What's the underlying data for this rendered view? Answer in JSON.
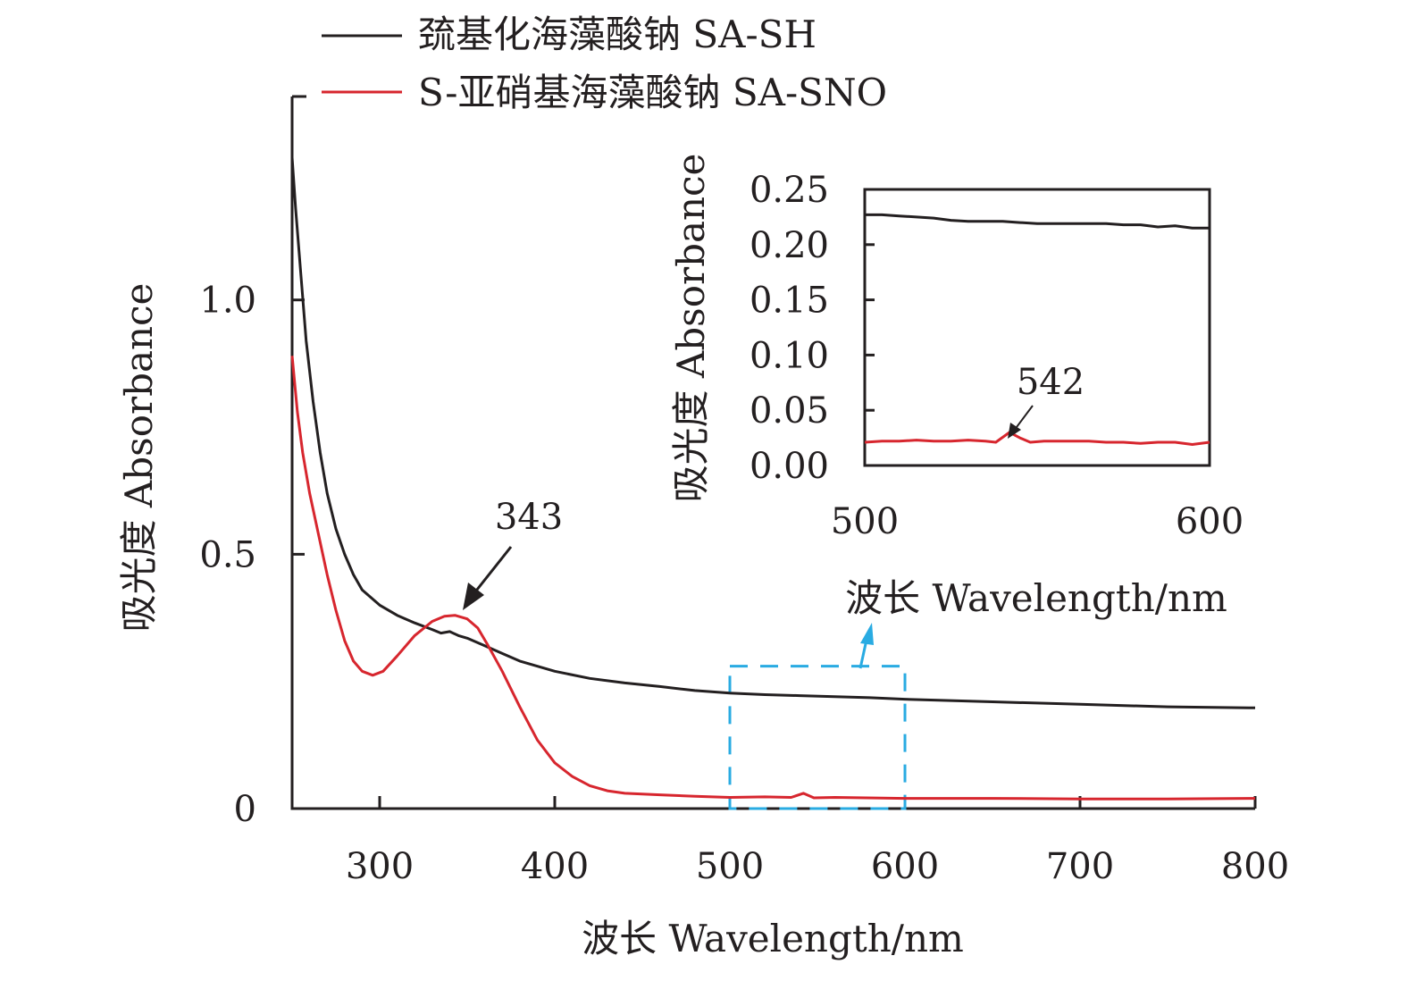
{
  "chart_data": [
    {
      "id": "main",
      "type": "line",
      "xlabel": "波长 Wavelength/nm",
      "ylabel": "吸光度 Absorbance",
      "xlim": [
        250,
        800
      ],
      "ylim": [
        0,
        1.4
      ],
      "xticks": [
        300,
        400,
        500,
        600,
        700,
        800
      ],
      "yticks": [
        0,
        0.5,
        1.0
      ],
      "ytick_labels": [
        "0",
        "0.5",
        "1.0"
      ],
      "grid": false,
      "legend": {
        "placement": "top",
        "entries": [
          {
            "label": "巯基化海藻酸钠 SA-SH",
            "color": "#231f20"
          },
          {
            "label": "S-亚硝基海藻酸钠 SA-SNO",
            "color": "#d7262e"
          }
        ]
      },
      "series": [
        {
          "name": "巯基化海藻酸钠 SA-SH",
          "color": "#231f20",
          "x": [
            250,
            252,
            255,
            258,
            262,
            266,
            270,
            275,
            280,
            285,
            290,
            300,
            310,
            320,
            330,
            335,
            340,
            345,
            350,
            360,
            370,
            380,
            400,
            420,
            440,
            460,
            480,
            500,
            520,
            540,
            560,
            580,
            600,
            650,
            700,
            750,
            800
          ],
          "y": [
            1.28,
            1.18,
            1.05,
            0.92,
            0.8,
            0.7,
            0.62,
            0.55,
            0.5,
            0.46,
            0.43,
            0.4,
            0.38,
            0.365,
            0.352,
            0.345,
            0.348,
            0.34,
            0.335,
            0.32,
            0.305,
            0.29,
            0.27,
            0.256,
            0.247,
            0.24,
            0.232,
            0.227,
            0.224,
            0.222,
            0.22,
            0.218,
            0.215,
            0.21,
            0.205,
            0.2,
            0.198
          ]
        },
        {
          "name": "S-亚硝基海藻酸钠 SA-SNO",
          "color": "#d7262e",
          "x": [
            250,
            253,
            256,
            260,
            265,
            270,
            275,
            280,
            285,
            290,
            296,
            302,
            310,
            320,
            330,
            337,
            343,
            350,
            356,
            362,
            370,
            380,
            390,
            400,
            410,
            420,
            430,
            440,
            460,
            480,
            500,
            520,
            535,
            542,
            548,
            560,
            600,
            650,
            700,
            750,
            800
          ],
          "y": [
            0.89,
            0.78,
            0.7,
            0.62,
            0.54,
            0.46,
            0.39,
            0.33,
            0.29,
            0.27,
            0.262,
            0.27,
            0.3,
            0.34,
            0.368,
            0.378,
            0.38,
            0.373,
            0.355,
            0.32,
            0.27,
            0.2,
            0.135,
            0.09,
            0.063,
            0.045,
            0.035,
            0.03,
            0.027,
            0.024,
            0.022,
            0.023,
            0.022,
            0.03,
            0.021,
            0.022,
            0.02,
            0.02,
            0.019,
            0.019,
            0.02
          ]
        }
      ],
      "annotations": [
        {
          "text": "343",
          "x": 343,
          "y": 0.38
        },
        {
          "highlight_box": {
            "x_range": [
              500,
              600
            ],
            "y_range": [
              0,
              0.28
            ],
            "color": "#29abe2",
            "style": "dashed"
          }
        }
      ]
    },
    {
      "id": "inset",
      "type": "line",
      "xlabel": "波长 Wavelength/nm",
      "ylabel": "吸光度 Absorbance",
      "xlim": [
        500,
        600
      ],
      "ylim": [
        0,
        0.25
      ],
      "xticks": [
        500,
        600
      ],
      "yticks": [
        0,
        0.05,
        0.1,
        0.15,
        0.2,
        0.25
      ],
      "ytick_labels": [
        "0.00",
        "0.05",
        "0.10",
        "0.15",
        "0.20",
        "0.25"
      ],
      "grid": false,
      "series": [
        {
          "name": "巯基化海藻酸钠 SA-SH",
          "color": "#231f20",
          "x": [
            500,
            505,
            510,
            515,
            520,
            525,
            530,
            535,
            540,
            545,
            550,
            555,
            560,
            565,
            570,
            575,
            580,
            585,
            590,
            595,
            600
          ],
          "y": [
            0.227,
            0.227,
            0.226,
            0.225,
            0.224,
            0.222,
            0.221,
            0.221,
            0.221,
            0.22,
            0.219,
            0.219,
            0.219,
            0.219,
            0.219,
            0.218,
            0.218,
            0.216,
            0.217,
            0.215,
            0.215
          ]
        },
        {
          "name": "S-亚硝基海藻酸钠 SA-SNO",
          "color": "#d7262e",
          "x": [
            500,
            505,
            510,
            515,
            520,
            525,
            530,
            535,
            538,
            542,
            545,
            548,
            552,
            556,
            560,
            565,
            570,
            575,
            580,
            585,
            590,
            595,
            600
          ],
          "y": [
            0.021,
            0.022,
            0.022,
            0.023,
            0.022,
            0.022,
            0.023,
            0.022,
            0.021,
            0.03,
            0.025,
            0.021,
            0.022,
            0.022,
            0.022,
            0.022,
            0.021,
            0.021,
            0.02,
            0.021,
            0.021,
            0.019,
            0.021
          ]
        }
      ],
      "annotations": [
        {
          "text": "542",
          "x": 542,
          "y": 0.03
        }
      ]
    }
  ]
}
